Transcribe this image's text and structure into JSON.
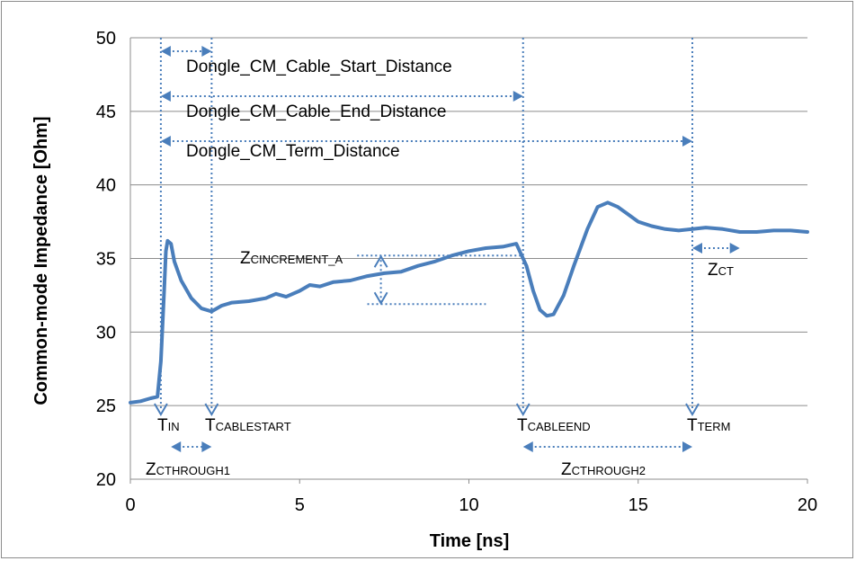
{
  "chart_data": {
    "type": "line",
    "xlabel": "Time [ns]",
    "ylabel": "Common-mode Impedance [Ohm]",
    "xlim": [
      0,
      20
    ],
    "ylim": [
      20,
      50
    ],
    "xticks": [
      "0",
      "5",
      "10",
      "15",
      "20"
    ],
    "yticks": [
      "20",
      "25",
      "30",
      "35",
      "40",
      "45",
      "50"
    ],
    "grid": "horizontal",
    "series_color": "#4a7ebb",
    "annotation_color": "#4a7ebb",
    "series": [
      {
        "x": [
          0,
          0.3,
          0.6,
          0.8,
          0.9,
          1.0,
          1.05,
          1.1,
          1.2,
          1.3,
          1.5,
          1.8,
          2.1,
          2.4,
          2.7,
          3.0,
          3.5,
          4.0,
          4.3,
          4.6,
          5.0,
          5.3,
          5.6,
          6.0,
          6.5,
          7.0,
          7.5,
          8.0,
          8.5,
          9.0,
          9.5,
          10.0,
          10.5,
          11.0,
          11.4,
          11.7,
          11.9,
          12.1,
          12.3,
          12.5,
          12.8,
          13.1,
          13.5,
          13.8,
          14.1,
          14.4,
          14.7,
          15.0,
          15.4,
          15.8,
          16.2,
          16.6,
          17.0,
          17.5,
          18.0,
          18.5,
          19.0,
          19.5,
          20.0
        ],
        "y": [
          25.2,
          25.3,
          25.5,
          25.6,
          28.0,
          33.0,
          35.5,
          36.2,
          36.0,
          34.8,
          33.5,
          32.3,
          31.6,
          31.4,
          31.8,
          32.0,
          32.1,
          32.3,
          32.6,
          32.4,
          32.8,
          33.2,
          33.1,
          33.4,
          33.5,
          33.8,
          34.0,
          34.1,
          34.5,
          34.8,
          35.2,
          35.5,
          35.7,
          35.8,
          36.0,
          34.5,
          32.8,
          31.5,
          31.1,
          31.2,
          32.5,
          34.5,
          37.0,
          38.5,
          38.8,
          38.5,
          38.0,
          37.5,
          37.2,
          37.0,
          36.9,
          37.0,
          37.1,
          37.0,
          36.8,
          36.8,
          36.9,
          36.9,
          36.8
        ]
      }
    ],
    "labels": {
      "start_distance": "Dongle_CM_Cable_Start_Distance",
      "end_distance": "Dongle_CM_Cable_End_Distance",
      "term_distance": "Dongle_CM_Term_Distance",
      "t_in": {
        "main": "T",
        "sub": "IN"
      },
      "t_cablestart": {
        "main": "T",
        "sub": "CABLESTART"
      },
      "t_cableend": {
        "main": "T",
        "sub": "CABLEEND"
      },
      "t_term": {
        "main": "T",
        "sub": "TERM"
      },
      "z_increment": {
        "main": "Z",
        "sub": "CINCREMENT_A"
      },
      "z_ct": {
        "main": "Z",
        "sub": "CT"
      },
      "z_through1": {
        "main": "Z",
        "sub": "CTHROUGH1"
      },
      "z_through2": {
        "main": "Z",
        "sub": "CTHROUGH2"
      }
    },
    "markers": {
      "t_in": 0.9,
      "t_cablestart": 2.4,
      "t_cableend": 11.6,
      "t_term": 16.6,
      "increment_low": 31.9,
      "increment_high": 35.2,
      "ct_end": 18.0
    }
  }
}
